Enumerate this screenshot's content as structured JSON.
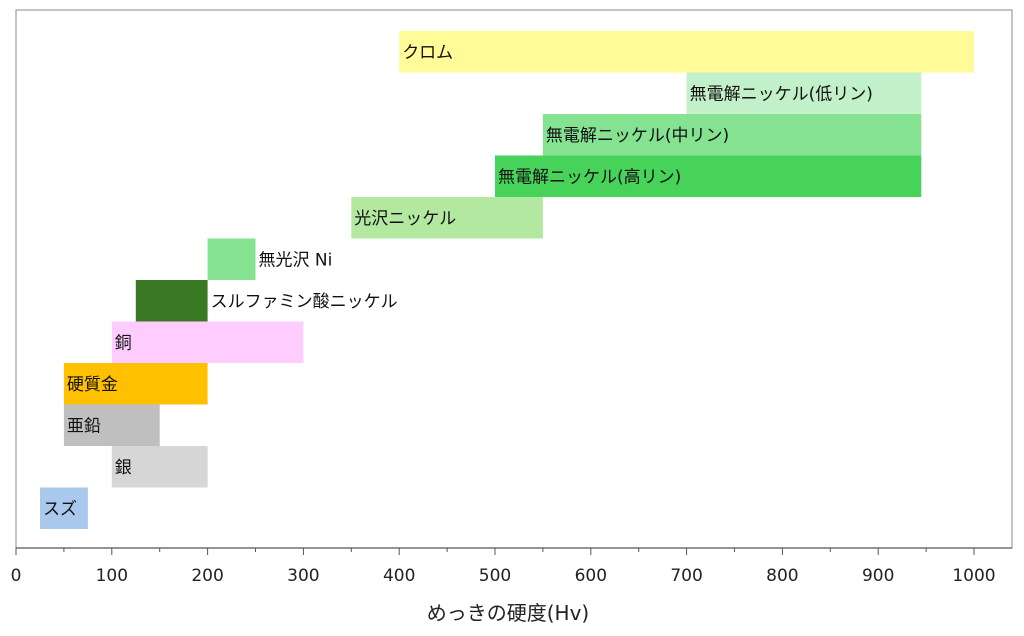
{
  "chart_data": {
    "type": "bar",
    "orientation": "horizontal-range",
    "title": "",
    "xlabel": "めっきの硬度(Hv)",
    "ylabel": "",
    "xlim": [
      0,
      1050
    ],
    "xticks": [
      0,
      100,
      200,
      300,
      400,
      500,
      600,
      700,
      800,
      900,
      1000
    ],
    "xtick_labels": [
      "0",
      "100",
      "200",
      "300",
      "400",
      "500",
      "600",
      "700",
      "800",
      "900",
      "1000"
    ],
    "grid": false,
    "legend": "none",
    "bars": [
      {
        "label": "クロム",
        "min": 400,
        "max": 1000,
        "color": "#fffb98",
        "label_position": "inside"
      },
      {
        "label": "無電解ニッケル(低リン)",
        "min": 700,
        "max": 945,
        "color": "#c2f0c8",
        "label_position": "inside"
      },
      {
        "label": "無電解ニッケル(中リン)",
        "min": 550,
        "max": 945,
        "color": "#84e291",
        "label_position": "inside"
      },
      {
        "label": "無電解ニッケル(高リン)",
        "min": 500,
        "max": 945,
        "color": "#47d35a",
        "label_position": "inside"
      },
      {
        "label": "光沢ニッケル",
        "min": 350,
        "max": 550,
        "color": "#b3e8a0",
        "label_position": "inside"
      },
      {
        "label": "無光沢 Ni",
        "min": 200,
        "max": 250,
        "color": "#84e291",
        "label_position": "right"
      },
      {
        "label": "スルファミン酸ニッケル",
        "min": 125,
        "max": 200,
        "color": "#3a7a24",
        "label_position": "right"
      },
      {
        "label": "銅",
        "min": 100,
        "max": 300,
        "color": "#ffccff",
        "label_position": "inside"
      },
      {
        "label": "硬質金",
        "min": 50,
        "max": 200,
        "color": "#ffc000",
        "label_position": "inside"
      },
      {
        "label": "亜鉛",
        "min": 50,
        "max": 150,
        "color": "#bfbfbf",
        "label_position": "inside"
      },
      {
        "label": "銀",
        "min": 100,
        "max": 200,
        "color": "#d6d6d6",
        "label_position": "inside"
      },
      {
        "label": "スズ",
        "min": 25,
        "max": 75,
        "color": "#a9c8ee",
        "label_position": "inside"
      }
    ]
  }
}
